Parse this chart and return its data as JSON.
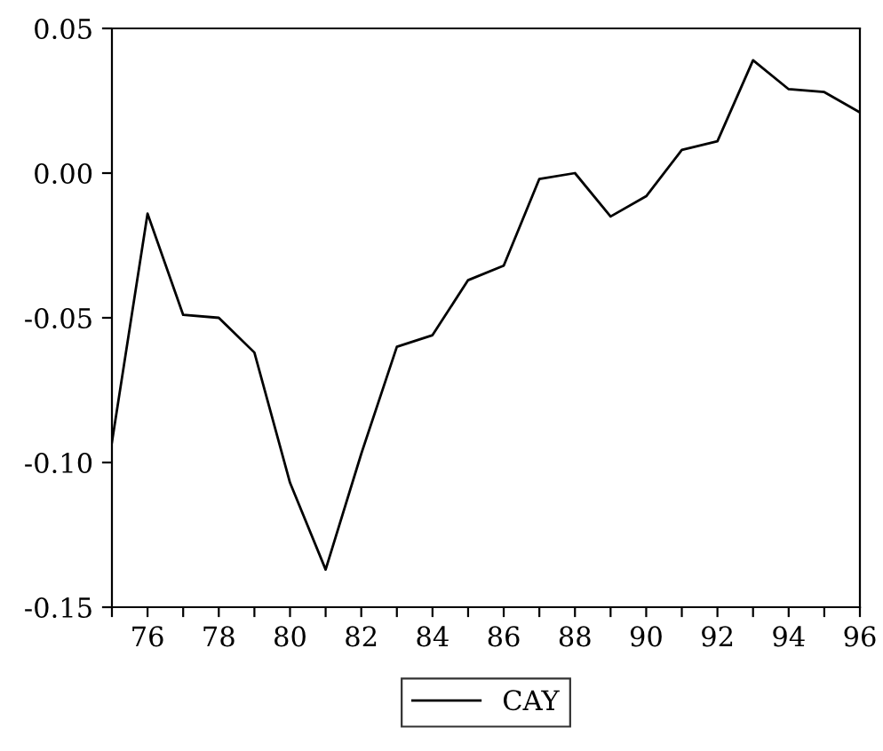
{
  "chart_data": {
    "type": "line",
    "x": [
      75,
      76,
      77,
      78,
      79,
      80,
      81,
      82,
      83,
      84,
      85,
      86,
      87,
      88,
      89,
      90,
      91,
      92,
      93,
      94,
      95,
      96
    ],
    "series": [
      {
        "name": "CAY",
        "color": "#000000",
        "values": [
          -0.093,
          -0.014,
          -0.049,
          -0.05,
          -0.062,
          -0.107,
          -0.137,
          -0.097,
          -0.06,
          -0.056,
          -0.037,
          -0.032,
          -0.002,
          0.0,
          -0.015,
          -0.008,
          0.008,
          0.011,
          0.039,
          0.029,
          0.028,
          0.021
        ]
      }
    ],
    "xlim": [
      75,
      96
    ],
    "xticks": [
      {
        "value": 75,
        "label": null
      },
      76,
      {
        "value": 77,
        "label": null
      },
      78,
      {
        "value": 79,
        "label": null
      },
      80,
      {
        "value": 81,
        "label": null
      },
      82,
      {
        "value": 83,
        "label": null
      },
      84,
      {
        "value": 85,
        "label": null
      },
      86,
      {
        "value": 87,
        "label": null
      },
      88,
      {
        "value": 89,
        "label": null
      },
      90,
      {
        "value": 91,
        "label": null
      },
      92,
      {
        "value": 93,
        "label": null
      },
      94,
      {
        "value": 95,
        "label": null
      },
      96
    ],
    "ylim": [
      -0.15,
      0.05
    ],
    "yticks": [
      {
        "value": -0.15,
        "label": "-0.15"
      },
      {
        "value": -0.1,
        "label": "-0.10"
      },
      {
        "value": -0.05,
        "label": "-0.05"
      },
      {
        "value": 0,
        "label": "0.00"
      },
      {
        "value": 0.05,
        "label": "0.05"
      }
    ],
    "legend": "bottom",
    "grid": false,
    "marker": "none",
    "line_style": "solid"
  }
}
